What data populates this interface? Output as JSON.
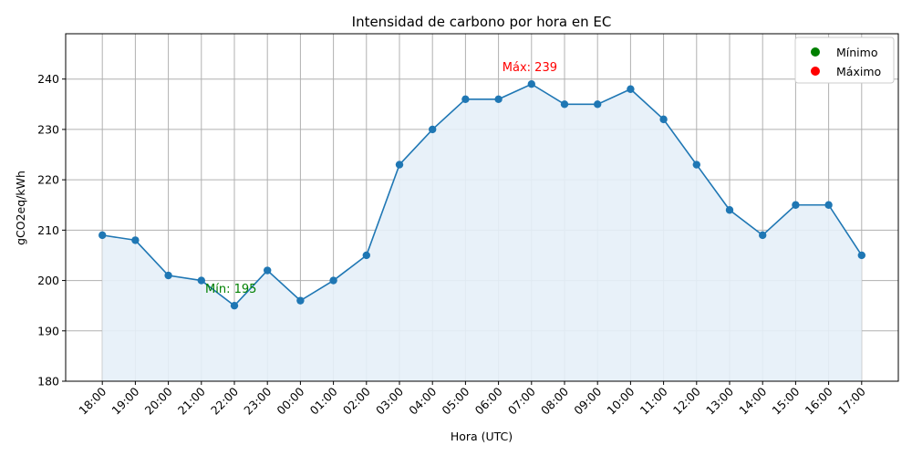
{
  "chart_data": {
    "type": "line",
    "title": "Intensidad de carbono por hora en EC",
    "xlabel": "Hora (UTC)",
    "ylabel": "gCO2eq/kWh",
    "categories": [
      "18:00",
      "19:00",
      "20:00",
      "21:00",
      "22:00",
      "23:00",
      "00:00",
      "01:00",
      "02:00",
      "03:00",
      "04:00",
      "05:00",
      "06:00",
      "07:00",
      "08:00",
      "09:00",
      "10:00",
      "11:00",
      "12:00",
      "13:00",
      "14:00",
      "15:00",
      "16:00",
      "17:00"
    ],
    "series": [
      {
        "values": [
          209,
          208,
          201,
          200,
          195,
          202,
          196,
          200,
          205,
          223,
          230,
          236,
          236,
          239,
          235,
          235,
          238,
          232,
          223,
          214,
          209,
          215,
          215,
          205
        ]
      }
    ],
    "ylim": [
      180,
      249
    ],
    "yticks": [
      180,
      190,
      200,
      210,
      220,
      230,
      240
    ],
    "grid": true,
    "fill_under_line": true,
    "legend": {
      "placement": "top-right",
      "items": [
        {
          "label": "Mínimo",
          "color": "#008000"
        },
        {
          "label": "Máximo",
          "color": "#ff0000"
        }
      ]
    },
    "annotations": [
      {
        "text": "Mín: 195",
        "category": "22:00",
        "value": 195,
        "color": "#008000"
      },
      {
        "text": "Máx: 239",
        "category": "07:00",
        "value": 239,
        "color": "#ff0000"
      }
    ],
    "colors": {
      "line": "#1f77b4",
      "fill": "#e6eff8",
      "grid": "#b0b0b0"
    }
  }
}
